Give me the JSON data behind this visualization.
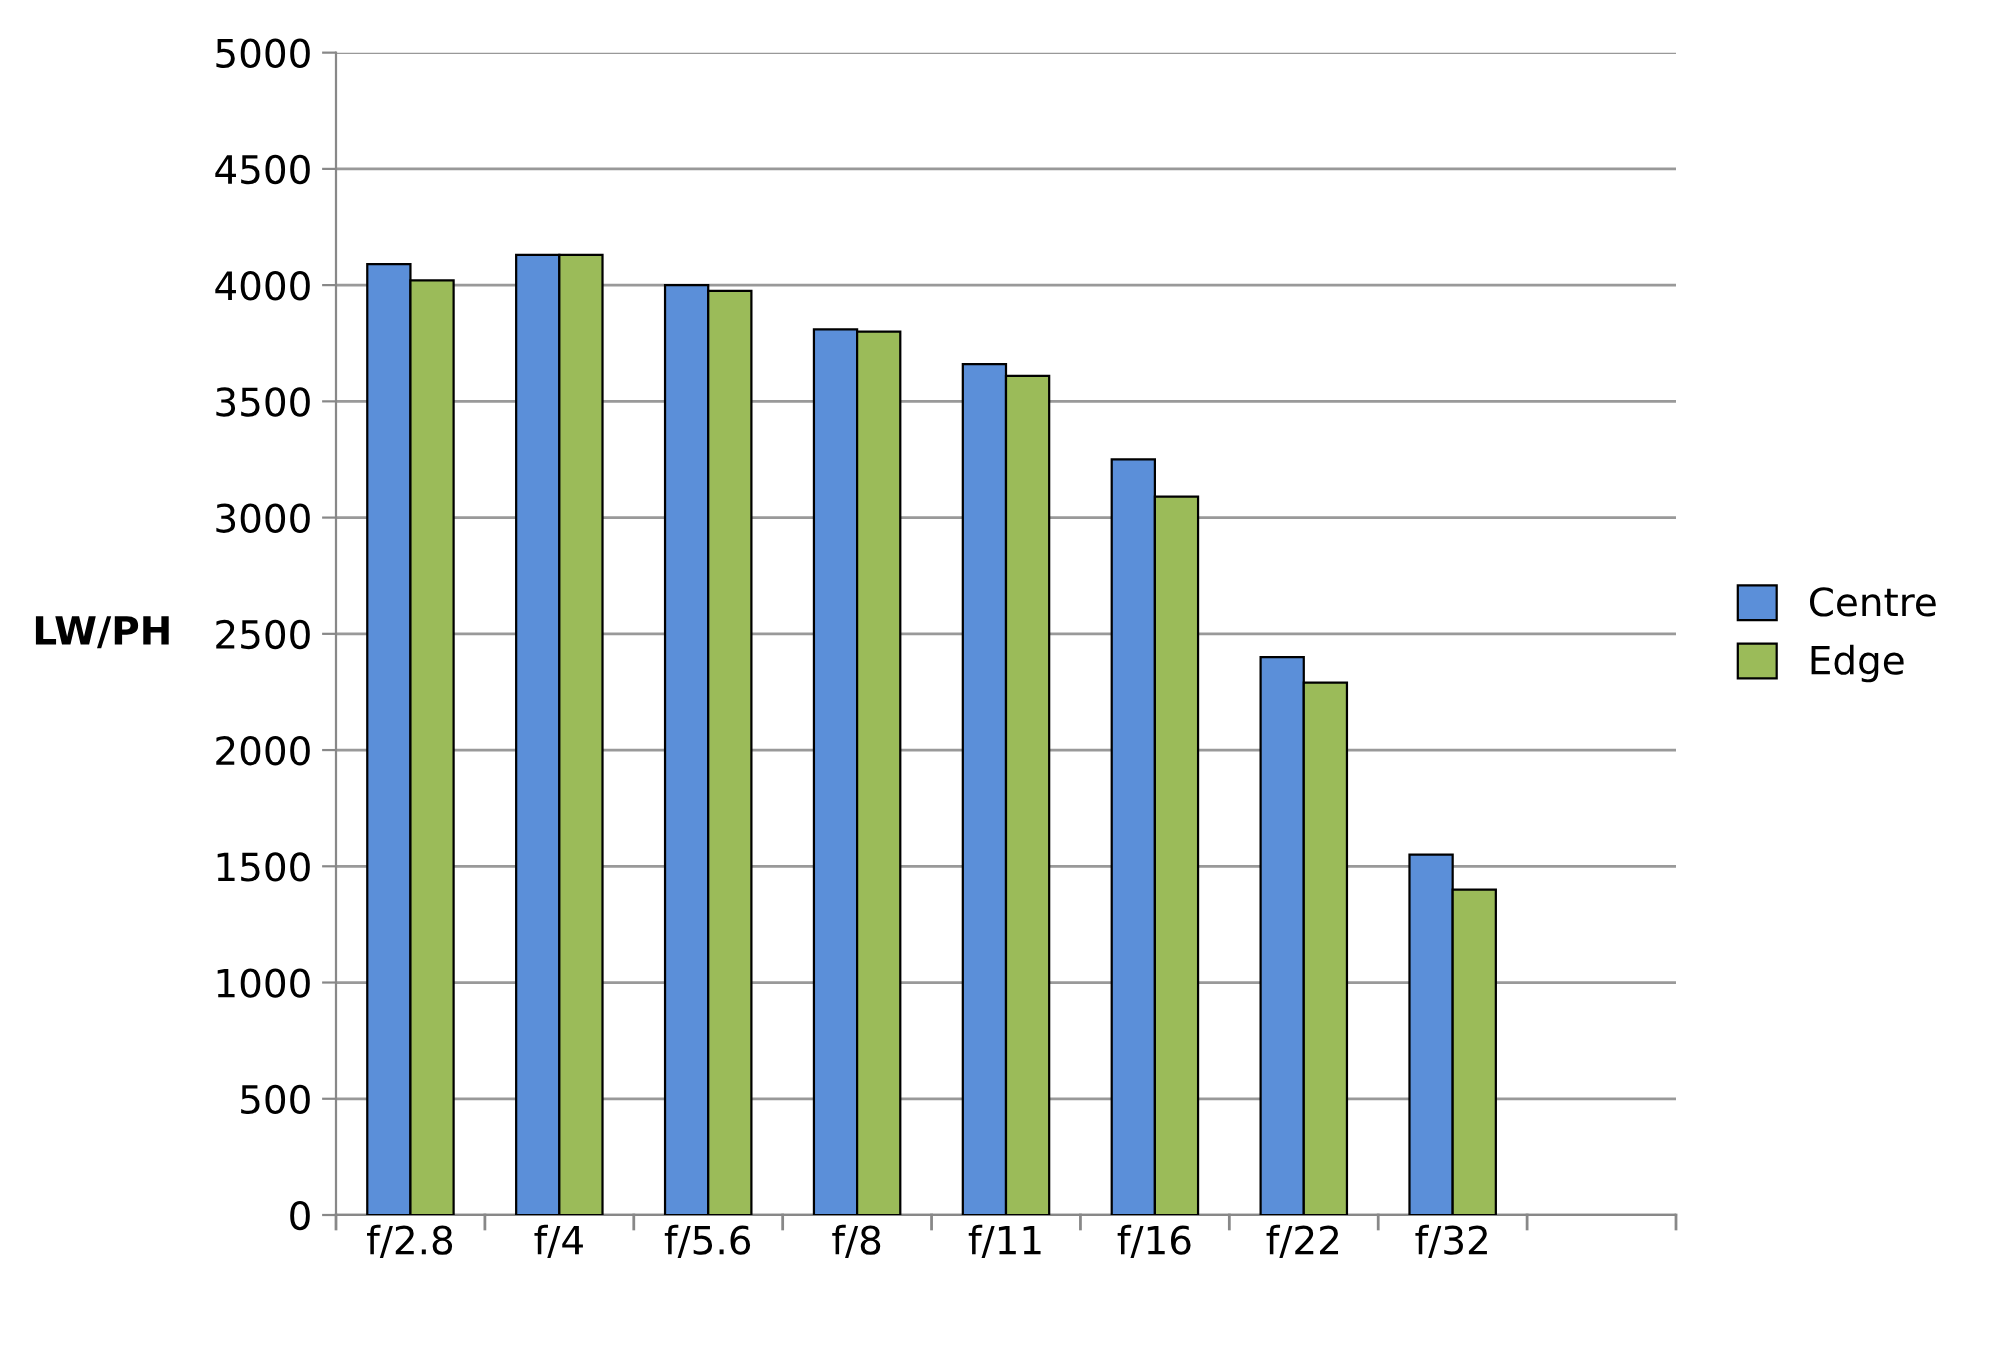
{
  "chart_data": {
    "type": "bar",
    "ylabel": "LW/PH",
    "categories": [
      "f/2.8",
      "f/4",
      "f/5.6",
      "f/8",
      "f/11",
      "f/16",
      "f/22",
      "f/32",
      null
    ],
    "series": [
      {
        "name": "Centre",
        "color": "#5b8fd9",
        "values": [
          4090,
          4130,
          4000,
          3810,
          3660,
          3250,
          2400,
          1550,
          null
        ]
      },
      {
        "name": "Edge",
        "color": "#9bbb59",
        "values": [
          4020,
          4130,
          3975,
          3800,
          3610,
          3090,
          2290,
          1400,
          null
        ]
      }
    ],
    "ylim": [
      0,
      5000
    ],
    "yticks": [
      0,
      500,
      1000,
      1500,
      2000,
      2500,
      3000,
      3500,
      4000,
      4500,
      5000
    ],
    "grid": "y",
    "legend": "right"
  }
}
